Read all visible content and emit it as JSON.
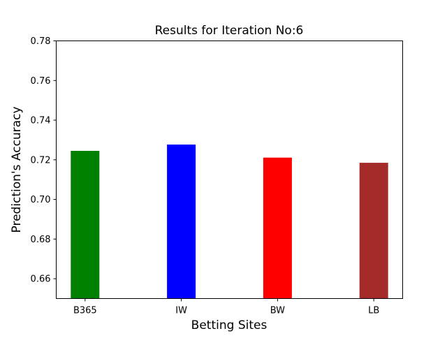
{
  "chart_data": {
    "type": "bar",
    "title": "Results for Iteration No:6",
    "xlabel": "Betting Sites",
    "ylabel": "Prediction's Accuracy",
    "categories": [
      "B365",
      "IW",
      "BW",
      "LB"
    ],
    "values": [
      0.7245,
      0.7277,
      0.7211,
      0.7185
    ],
    "colors": [
      "#008000",
      "#0000ff",
      "#ff0000",
      "#a52a2a"
    ],
    "ylim": [
      0.65,
      0.78
    ],
    "yticks": [
      "0.66",
      "0.68",
      "0.70",
      "0.72",
      "0.74",
      "0.76",
      "0.78"
    ],
    "grid": false,
    "legend": "none"
  }
}
